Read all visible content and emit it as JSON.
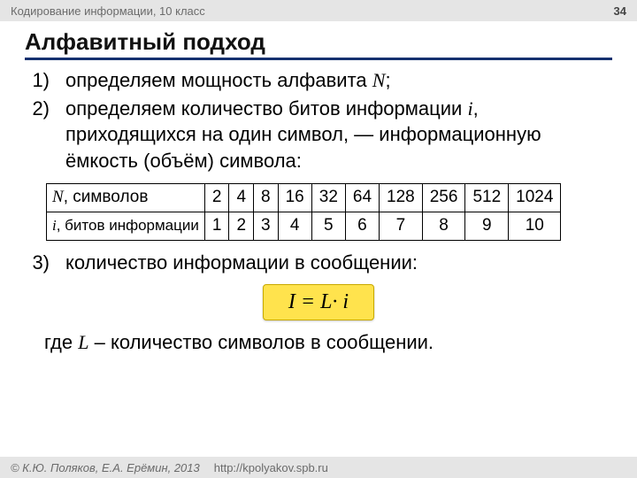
{
  "top": {
    "course": "Кодирование информации, 10 класс",
    "page": "34"
  },
  "title": "Алфавитный подход",
  "steps": {
    "s1": {
      "n": "1)",
      "t": "определяем мощность алфавита ",
      "v": "N",
      "tail": ";"
    },
    "s2": {
      "n": "2)",
      "t1": "определяем количество битов информации ",
      "v": "i",
      "t2": ", приходящихся на один символ, — информационную ёмкость (объём) символа:"
    },
    "s3": {
      "n": "3)",
      "t": "количество информации в сообщении:"
    }
  },
  "table": {
    "h1": {
      "v": "N",
      "u": ", символов"
    },
    "h2": {
      "v": "i",
      "u": ", битов информации"
    },
    "row1": [
      "2",
      "4",
      "8",
      "16",
      "32",
      "64",
      "128",
      "256",
      "512",
      "1024"
    ],
    "row2": [
      "1",
      "2",
      "3",
      "4",
      "5",
      "6",
      "7",
      "8",
      "9",
      "10"
    ]
  },
  "formula": "I = L· i",
  "note": {
    "pre": "где ",
    "v": "L",
    "post": " – количество символов в сообщении."
  },
  "foot": {
    "copy": "© К.Ю. Поляков, Е.А. Ерёмин, 2013",
    "url": "http://kpolyakov.spb.ru"
  }
}
